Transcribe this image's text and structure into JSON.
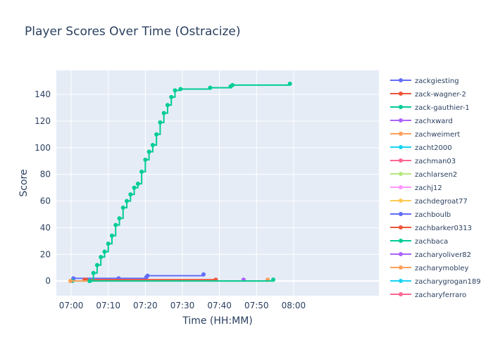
{
  "chart_data": {
    "type": "line",
    "title": "Player Scores Over Time (Ostracize)",
    "xlabel": "Time (HH:MM)",
    "ylabel": "Score",
    "x_unit": "minutes after 07:00",
    "xlim": [
      -4,
      83
    ],
    "ylim": [
      -11,
      158
    ],
    "x_ticks": [
      {
        "value": 0,
        "label": "07:00"
      },
      {
        "value": 10,
        "label": "07:10"
      },
      {
        "value": 20,
        "label": "07:20"
      },
      {
        "value": 30,
        "label": "07:30"
      },
      {
        "value": 40,
        "label": "07:40"
      },
      {
        "value": 50,
        "label": "07:50"
      },
      {
        "value": 60,
        "label": "08:00"
      }
    ],
    "y_ticks": [
      0,
      20,
      40,
      60,
      80,
      100,
      120,
      140
    ],
    "grid": true,
    "legend_position": "right",
    "series": [
      {
        "name": "zackgiesting",
        "color": "#636efa",
        "x": [
          0.5,
          0.6,
          12.8,
          20.3,
          20.6,
          35.7
        ],
        "y": [
          1,
          2,
          2,
          3,
          4,
          5
        ]
      },
      {
        "name": "zack-wagner-2",
        "color": "#ef553b",
        "x": [
          3.6,
          4.0,
          39.0
        ],
        "y": [
          1,
          1,
          1
        ]
      },
      {
        "name": "zack-gauthier-1",
        "color": "#00cc96",
        "x": [
          0.3,
          5.0,
          6.0,
          7.0,
          8.0,
          9.0,
          10.0,
          11.0,
          12.0,
          13.0,
          14.0,
          15.0,
          16.0,
          17.0,
          18.0,
          19.0,
          20.0,
          21.0,
          22.0,
          23.0,
          24.0,
          25.0,
          26.0,
          27.0,
          28.0,
          29.5,
          37.5,
          43.0,
          43.5,
          59.0
        ],
        "y": [
          0,
          0,
          6,
          12,
          18,
          22,
          28,
          34,
          42,
          47,
          55,
          60,
          65,
          70,
          73,
          82,
          91,
          97,
          102,
          110,
          119,
          126,
          132,
          138,
          143,
          144,
          145,
          146,
          147,
          148
        ]
      },
      {
        "name": "zachxward",
        "color": "#ab63fa",
        "x": [
          46.5
        ],
        "y": [
          1
        ]
      },
      {
        "name": "zachweimert",
        "color": "#ffa15a",
        "x": [
          -0.2,
          53.0
        ],
        "y": [
          0,
          1
        ]
      },
      {
        "name": "zacht2000",
        "color": "#19d3f3",
        "x": [],
        "y": []
      },
      {
        "name": "zachman03",
        "color": "#ff6692",
        "x": [],
        "y": []
      },
      {
        "name": "zachlarsen2",
        "color": "#b6e880",
        "x": [],
        "y": []
      },
      {
        "name": "zachj12",
        "color": "#ff97ff",
        "x": [],
        "y": []
      },
      {
        "name": "zachdegroat77",
        "color": "#fecb52",
        "x": [],
        "y": []
      },
      {
        "name": "zachboulb",
        "color": "#636efa",
        "x": [],
        "y": []
      },
      {
        "name": "zachbarker0313",
        "color": "#ef553b",
        "x": [],
        "y": []
      },
      {
        "name": "zachbaca",
        "color": "#00cc96",
        "x": [
          5.0,
          54.5
        ],
        "y": [
          0,
          1
        ]
      },
      {
        "name": "zacharyoliver82",
        "color": "#ab63fa",
        "x": [],
        "y": []
      },
      {
        "name": "zacharymobley",
        "color": "#ffa15a",
        "x": [],
        "y": []
      },
      {
        "name": "zacharygrogan189",
        "color": "#19d3f3",
        "x": [],
        "y": []
      },
      {
        "name": "zacharyferraro",
        "color": "#ff6692",
        "x": [],
        "y": []
      }
    ]
  }
}
